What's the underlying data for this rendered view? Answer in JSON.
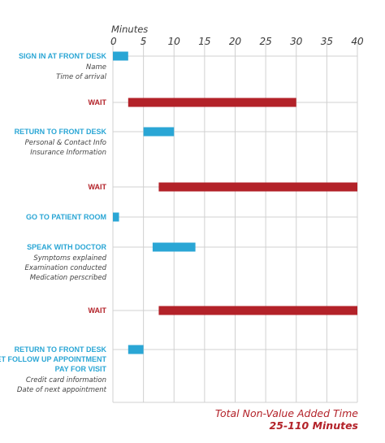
{
  "chart_data": {
    "type": "bar",
    "subtype": "timeline",
    "xlabel": "Minutes",
    "xlim": [
      0,
      40
    ],
    "xticks": [
      0,
      5,
      10,
      15,
      20,
      25,
      30,
      35,
      40
    ],
    "grid": true,
    "colors": {
      "value_added": "#2aa6d5",
      "non_value_added": "#b32229",
      "grid": "#d0d0d0"
    },
    "steps": [
      {
        "label_lines": [
          "SIGN IN AT FRONT DESK"
        ],
        "details": [
          "Name",
          "Time of arrival"
        ],
        "category": "value_added",
        "start": 0,
        "end": 2.5
      },
      {
        "label_lines": [
          "WAIT"
        ],
        "details": [],
        "category": "non_value_added",
        "start": 2.5,
        "end": 30
      },
      {
        "label_lines": [
          "RETURN TO FRONT DESK"
        ],
        "details": [
          "Personal & Contact Info",
          "Insurance Information"
        ],
        "category": "value_added",
        "start": 5,
        "end": 10
      },
      {
        "label_lines": [
          "WAIT"
        ],
        "details": [],
        "category": "non_value_added",
        "start": 7.5,
        "end": 40
      },
      {
        "label_lines": [
          "GO TO PATIENT ROOM"
        ],
        "details": [],
        "category": "value_added",
        "start": 0,
        "end": 1
      },
      {
        "label_lines": [
          "SPEAK WITH DOCTOR"
        ],
        "details": [
          "Symptoms explained",
          "Examination conducted",
          "Medication perscribed"
        ],
        "category": "value_added",
        "start": 6.5,
        "end": 13.5
      },
      {
        "label_lines": [
          "WAIT"
        ],
        "details": [],
        "category": "non_value_added",
        "start": 7.5,
        "end": 40
      },
      {
        "label_lines": [
          "RETURN TO FRONT DESK",
          "SET FOLLOW UP APPOINTMENT",
          "PAY FOR VISIT"
        ],
        "details": [
          "Credit card information",
          "Date of next appointment"
        ],
        "category": "value_added",
        "start": 2.5,
        "end": 5
      }
    ],
    "annotation": {
      "line1": "Total Non-Value Added Time",
      "line2": "25-110 Minutes"
    }
  }
}
